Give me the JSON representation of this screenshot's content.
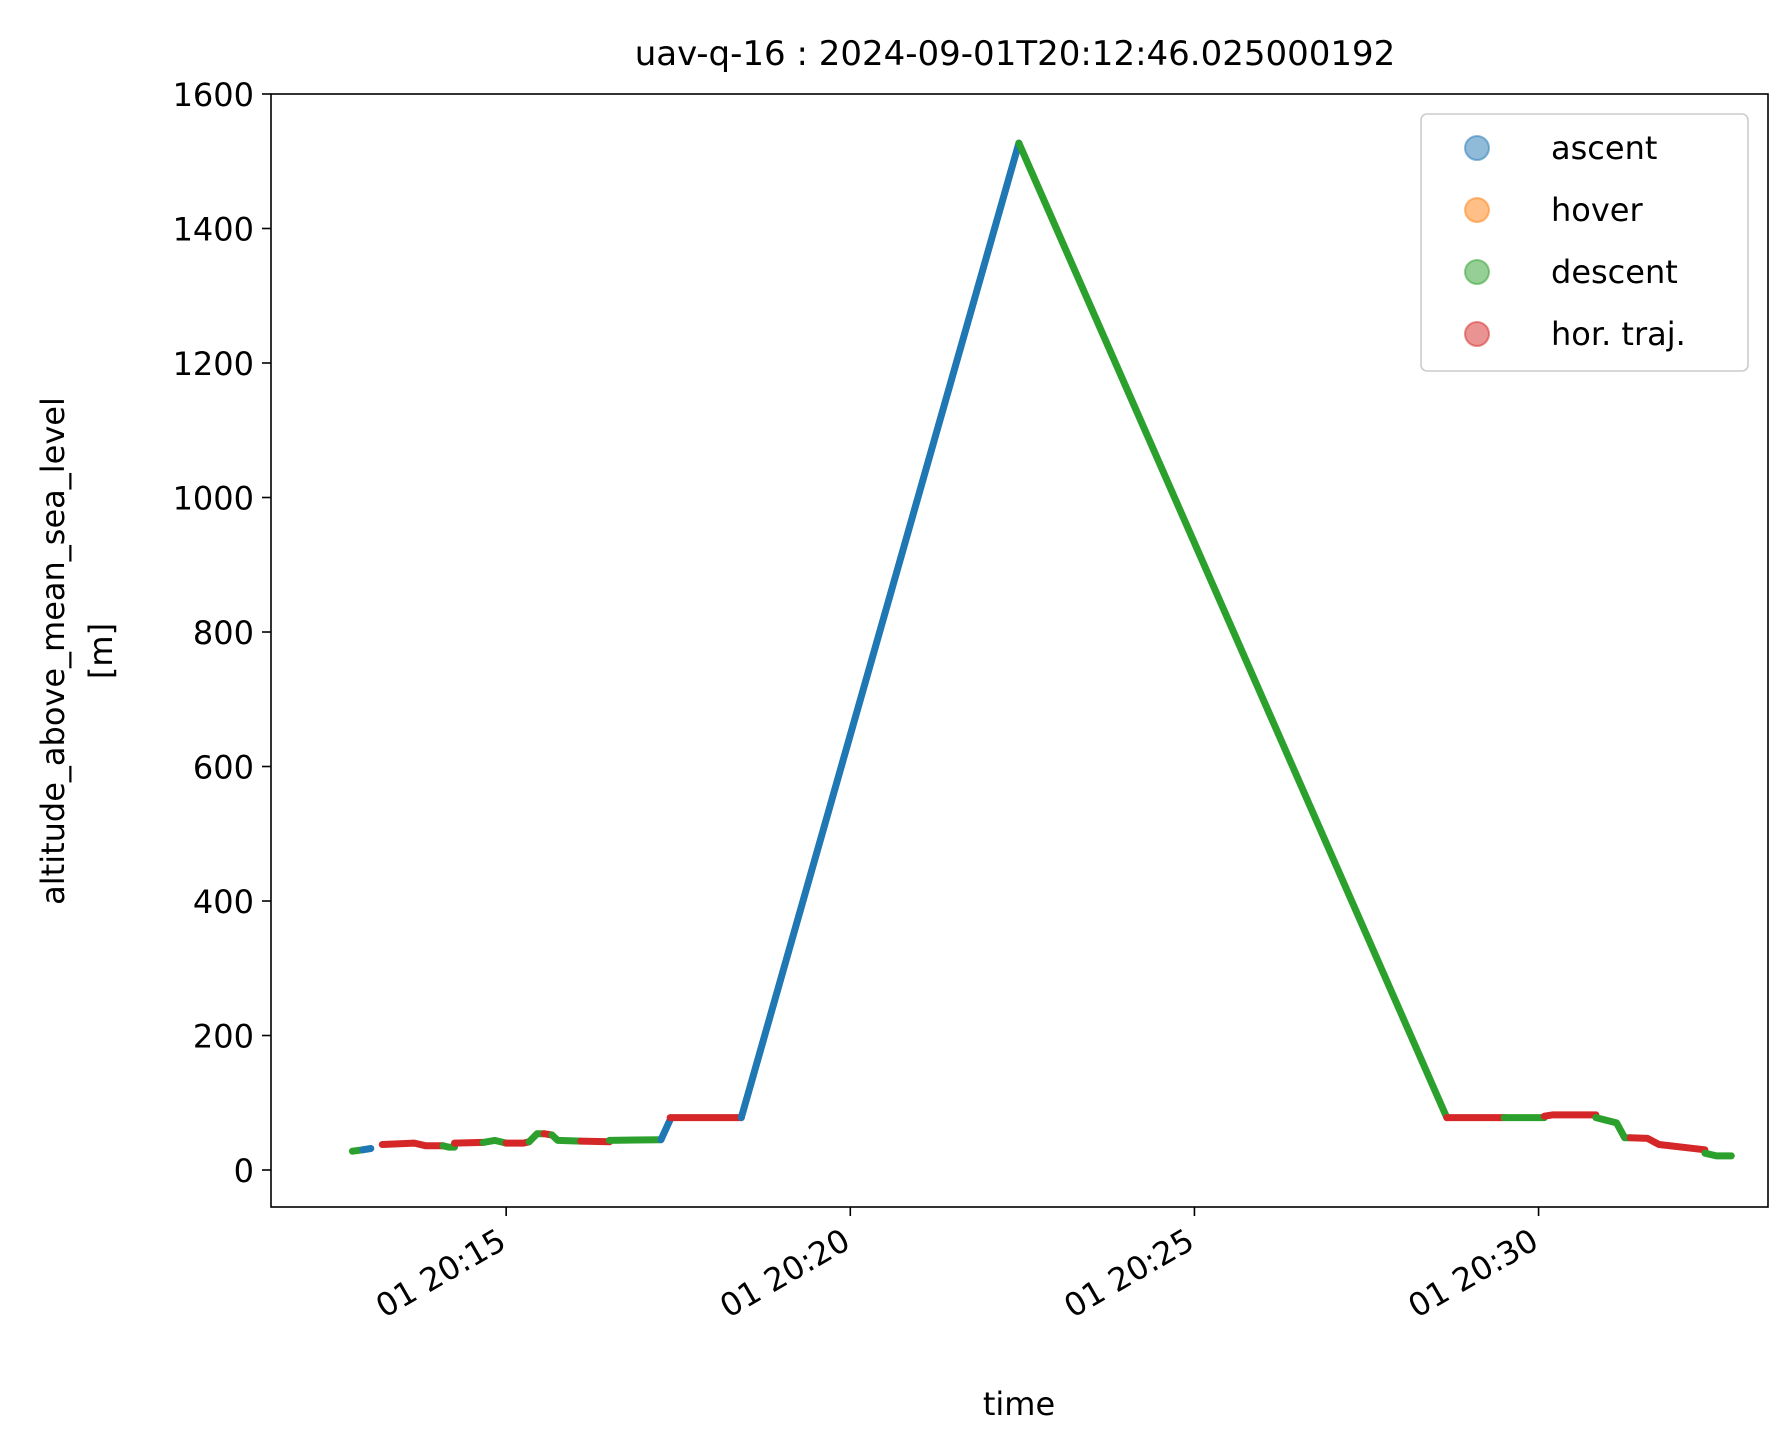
{
  "chart_data": {
    "type": "line",
    "title": "uav-q-16 : 2024-09-01T20:12:46.025000192",
    "xlabel": "time",
    "ylabel_line1": "altitude_above_mean_sea_level",
    "ylabel_line2": "[m]",
    "x_unit": "time (HH:MM:SS on 2024-09-01)",
    "xlim": [
      "20:11:35",
      "20:33:20"
    ],
    "ylim": [
      -55,
      1600
    ],
    "x_ticks": [
      {
        "label": "01 20:15",
        "value": "20:15:00"
      },
      {
        "label": "01 20:20",
        "value": "20:20:00"
      },
      {
        "label": "01 20:25",
        "value": "20:25:00"
      },
      {
        "label": "01 20:30",
        "value": "20:30:00"
      }
    ],
    "y_ticks": [
      0,
      200,
      400,
      600,
      800,
      1000,
      1200,
      1400,
      1600
    ],
    "grid": false,
    "legend_position": "top-right",
    "legend": [
      {
        "label": "ascent",
        "color": "#1f77b4"
      },
      {
        "label": "hover",
        "color": "#ff7f0e"
      },
      {
        "label": "descent",
        "color": "#2ca02c"
      },
      {
        "label": "hor. traj.",
        "color": "#d62728"
      }
    ],
    "series": [
      {
        "phase": "descent",
        "color": "#2ca02c",
        "points": [
          [
            "20:12:46",
            28
          ],
          [
            "20:12:55",
            30
          ]
        ]
      },
      {
        "phase": "ascent",
        "color": "#1f77b4",
        "points": [
          [
            "20:12:55",
            30
          ],
          [
            "20:13:02",
            32
          ]
        ]
      },
      {
        "phase": "hor. traj.",
        "color": "#d62728",
        "points": [
          [
            "20:13:12",
            38
          ],
          [
            "20:13:40",
            40
          ],
          [
            "20:13:50",
            36
          ],
          [
            "20:14:05",
            36
          ]
        ]
      },
      {
        "phase": "descent",
        "color": "#2ca02c",
        "points": [
          [
            "20:14:05",
            36
          ],
          [
            "20:14:10",
            34
          ],
          [
            "20:14:15",
            34
          ]
        ]
      },
      {
        "phase": "hor. traj.",
        "color": "#d62728",
        "points": [
          [
            "20:14:15",
            40
          ],
          [
            "20:14:40",
            41
          ]
        ]
      },
      {
        "phase": "descent",
        "color": "#2ca02c",
        "points": [
          [
            "20:14:40",
            41
          ],
          [
            "20:14:50",
            44
          ],
          [
            "20:15:00",
            40
          ]
        ]
      },
      {
        "phase": "hor. traj.",
        "color": "#d62728",
        "points": [
          [
            "20:15:00",
            40
          ],
          [
            "20:15:15",
            40
          ],
          [
            "20:15:20",
            42
          ]
        ]
      },
      {
        "phase": "descent",
        "color": "#2ca02c",
        "points": [
          [
            "20:15:20",
            42
          ],
          [
            "20:15:27",
            54
          ],
          [
            "20:15:33",
            54
          ]
        ]
      },
      {
        "phase": "hor. traj.",
        "color": "#d62728",
        "points": [
          [
            "20:15:33",
            54
          ],
          [
            "20:15:40",
            52
          ]
        ]
      },
      {
        "phase": "descent",
        "color": "#2ca02c",
        "points": [
          [
            "20:15:40",
            52
          ],
          [
            "20:15:45",
            44
          ],
          [
            "20:16:05",
            43
          ]
        ]
      },
      {
        "phase": "hor. traj.",
        "color": "#d62728",
        "points": [
          [
            "20:16:05",
            43
          ],
          [
            "20:16:30",
            42
          ]
        ]
      },
      {
        "phase": "descent",
        "color": "#2ca02c",
        "points": [
          [
            "20:16:30",
            44
          ],
          [
            "20:17:15",
            45
          ]
        ]
      },
      {
        "phase": "ascent",
        "color": "#1f77b4",
        "points": [
          [
            "20:17:15",
            45
          ],
          [
            "20:17:23",
            75
          ]
        ]
      },
      {
        "phase": "hor. traj.",
        "color": "#d62728",
        "points": [
          [
            "20:17:23",
            78
          ],
          [
            "20:18:25",
            78
          ]
        ]
      },
      {
        "phase": "ascent",
        "color": "#1f77b4",
        "points": [
          [
            "20:18:25",
            78
          ],
          [
            "20:22:27",
            1527
          ]
        ]
      },
      {
        "phase": "descent",
        "color": "#2ca02c",
        "points": [
          [
            "20:22:27",
            1527
          ],
          [
            "20:28:40",
            78
          ]
        ]
      },
      {
        "phase": "hor. traj.",
        "color": "#d62728",
        "points": [
          [
            "20:28:40",
            78
          ],
          [
            "20:29:30",
            78
          ]
        ]
      },
      {
        "phase": "descent",
        "color": "#2ca02c",
        "points": [
          [
            "20:29:30",
            78
          ],
          [
            "20:30:05",
            78
          ]
        ]
      },
      {
        "phase": "hor. traj.",
        "color": "#d62728",
        "points": [
          [
            "20:30:05",
            80
          ],
          [
            "20:30:12",
            82
          ],
          [
            "20:30:50",
            82
          ]
        ]
      },
      {
        "phase": "descent",
        "color": "#2ca02c",
        "points": [
          [
            "20:30:50",
            78
          ],
          [
            "20:31:08",
            70
          ],
          [
            "20:31:15",
            48
          ],
          [
            "20:31:20",
            48
          ]
        ]
      },
      {
        "phase": "hor. traj.",
        "color": "#d62728",
        "points": [
          [
            "20:31:20",
            48
          ],
          [
            "20:31:35",
            47
          ],
          [
            "20:31:45",
            38
          ],
          [
            "20:32:10",
            33
          ],
          [
            "20:32:25",
            30
          ]
        ]
      },
      {
        "phase": "descent",
        "color": "#2ca02c",
        "points": [
          [
            "20:32:25",
            25
          ],
          [
            "20:32:35",
            21
          ],
          [
            "20:32:48",
            21
          ]
        ]
      }
    ]
  }
}
